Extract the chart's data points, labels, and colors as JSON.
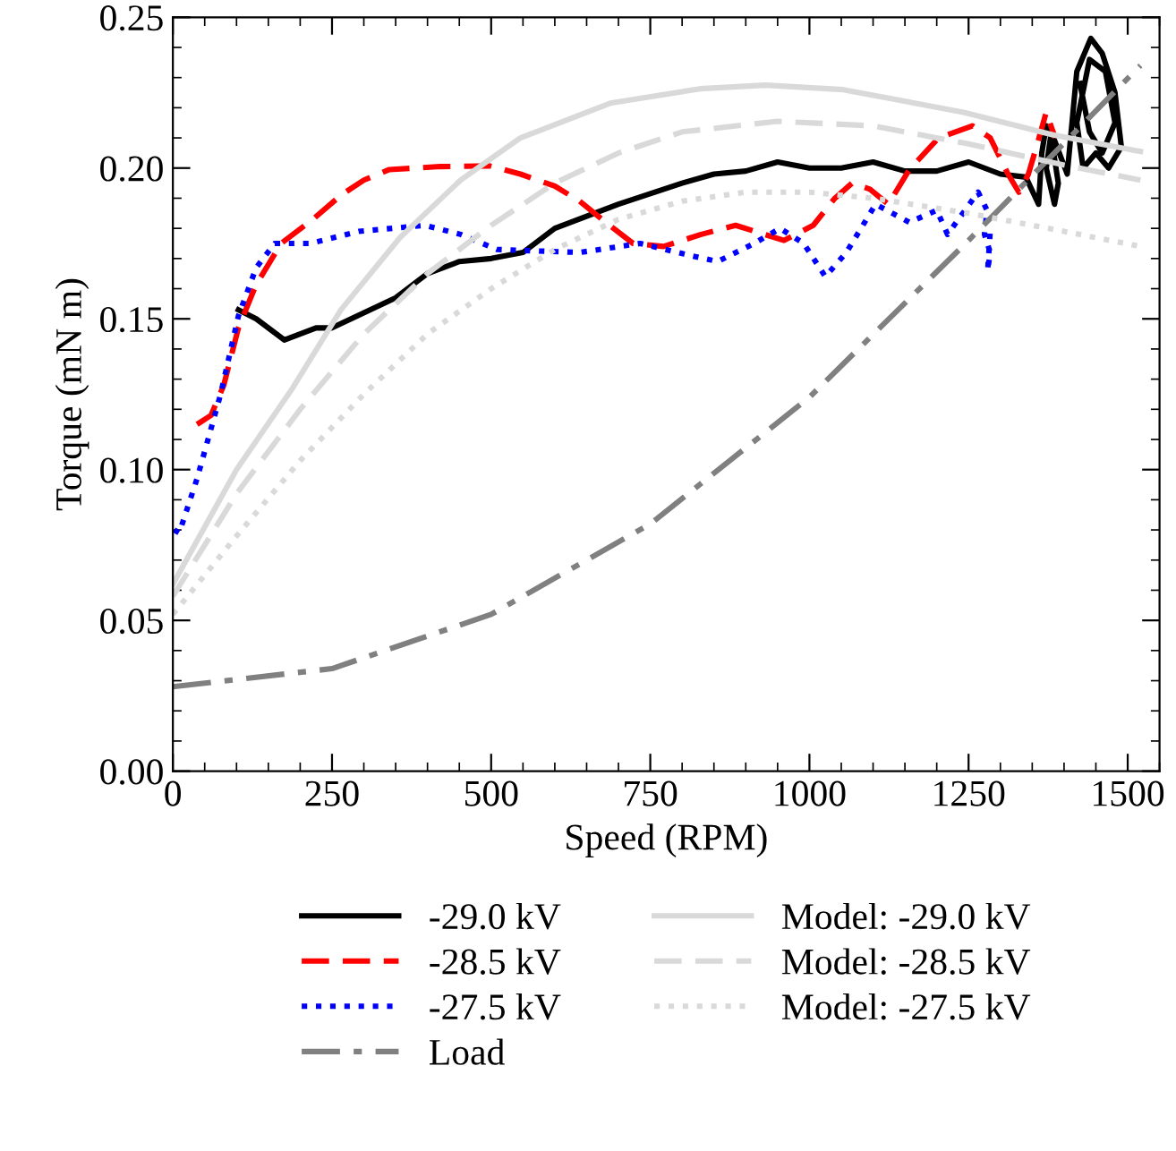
{
  "chart_data": {
    "type": "line",
    "xlabel": "Speed (RPM)",
    "ylabel": "Torque (mN m)",
    "xlim": [
      0,
      1550
    ],
    "xticks": [
      0,
      250,
      500,
      750,
      1000,
      1250,
      1500
    ],
    "ylim": [
      0,
      0.25
    ],
    "yticks": [
      {
        "value": 0,
        "label": "0.00"
      },
      0.05,
      {
        "value": 0.1,
        "label": "0.10"
      },
      0.15,
      {
        "value": 0.2,
        "label": "0.20"
      },
      0.25
    ],
    "grid": false,
    "legend": "bottom",
    "marker": "none",
    "series": [
      {
        "name": "-29.0 kV",
        "color": "#000000",
        "line_style": "solid",
        "x": [
          103,
          131,
          175,
          225,
          250,
          300,
          350,
          400,
          450,
          500,
          550,
          600,
          700,
          800,
          850,
          900,
          950,
          1000,
          1050,
          1100,
          1150,
          1200,
          1250,
          1300,
          1340,
          1360,
          1365,
          1372,
          1380,
          1391,
          1385,
          1372,
          1380,
          1405,
          1420,
          1442,
          1460,
          1480,
          1490,
          1470,
          1450,
          1430,
          1420,
          1440,
          1465,
          1480,
          1460,
          1440,
          1425
        ],
        "values": [
          0.153,
          0.15,
          0.143,
          0.147,
          0.147,
          0.152,
          0.157,
          0.165,
          0.169,
          0.17,
          0.172,
          0.18,
          0.188,
          0.195,
          0.198,
          0.199,
          0.202,
          0.2,
          0.2,
          0.202,
          0.199,
          0.199,
          0.202,
          0.198,
          0.197,
          0.188,
          0.205,
          0.214,
          0.21,
          0.195,
          0.188,
          0.2,
          0.212,
          0.198,
          0.232,
          0.243,
          0.238,
          0.225,
          0.207,
          0.2,
          0.205,
          0.2,
          0.215,
          0.236,
          0.232,
          0.215,
          0.205,
          0.212,
          0.228
        ]
      },
      {
        "name": "-28.5 kV",
        "color": "#ff0000",
        "line_style": "dashed",
        "x": [
          38,
          60,
          80,
          103,
          130,
          170,
          220,
          264,
          300,
          340,
          420,
          498,
          546,
          600,
          639,
          680,
          723,
          771,
          830,
          884,
          960,
          1006,
          1040,
          1067,
          1095,
          1124,
          1157,
          1203,
          1256,
          1284,
          1312,
          1329,
          1344,
          1358,
          1372,
          1386
        ],
        "values": [
          0.115,
          0.118,
          0.128,
          0.147,
          0.161,
          0.175,
          0.183,
          0.191,
          0.196,
          0.1995,
          0.2005,
          0.2007,
          0.198,
          0.194,
          0.189,
          0.182,
          0.175,
          0.174,
          0.178,
          0.181,
          0.176,
          0.181,
          0.19,
          0.195,
          0.193,
          0.188,
          0.1995,
          0.21,
          0.214,
          0.21,
          0.198,
          0.192,
          0.198,
          0.208,
          0.2185,
          0.21
        ]
      },
      {
        "name": "-27.5 kV",
        "color": "#0000ff",
        "line_style": "dotted",
        "x": [
          2,
          10,
          38,
          75,
          103,
          131,
          160,
          216,
          292,
          396,
          452,
          509,
          639,
          734,
          813,
          856,
          913,
          954,
          991,
          1025,
          1058,
          1104,
          1157,
          1200,
          1217,
          1265,
          1279,
          1275,
          1284,
          1280,
          1284
        ],
        "values": [
          0.08,
          0.079,
          0.097,
          0.125,
          0.151,
          0.167,
          0.175,
          0.175,
          0.179,
          0.181,
          0.178,
          0.173,
          0.172,
          0.175,
          0.171,
          0.169,
          0.175,
          0.18,
          0.175,
          0.164,
          0.172,
          0.188,
          0.182,
          0.186,
          0.178,
          0.192,
          0.186,
          0.178,
          0.172,
          0.166,
          0.179
        ]
      },
      {
        "name": "Load",
        "color": "#808080",
        "line_style": "dashdot",
        "x": [
          0,
          250,
          500,
          750,
          1000,
          1250,
          1520
        ],
        "values": [
          0.028,
          0.034,
          0.052,
          0.082,
          0.124,
          0.176,
          0.234
        ]
      },
      {
        "name": "Model: -29.0 kV",
        "color": "#d9d9d9",
        "line_style": "solid",
        "x": [
          0,
          100,
          188,
          264,
          357,
          452,
          546,
          687,
          828,
          931,
          1053,
          1242,
          1383,
          1520
        ],
        "values": [
          0.062,
          0.1,
          0.127,
          0.153,
          0.177,
          0.196,
          0.21,
          0.2215,
          0.2263,
          0.2275,
          0.226,
          0.2185,
          0.211,
          0.2055
        ]
      },
      {
        "name": "Model: -28.5 kV",
        "color": "#d9d9d9",
        "line_style": "dashed",
        "x": [
          0,
          100,
          200,
          300,
          400,
          500,
          600,
          700,
          800,
          950,
          1100,
          1250,
          1400,
          1520
        ],
        "values": [
          0.058,
          0.092,
          0.12,
          0.145,
          0.165,
          0.181,
          0.195,
          0.205,
          0.212,
          0.2155,
          0.214,
          0.208,
          0.201,
          0.196
        ]
      },
      {
        "name": "Model: -27.5 kV",
        "color": "#d9d9d9",
        "line_style": "dotted",
        "x": [
          0,
          100,
          200,
          300,
          400,
          500,
          600,
          700,
          800,
          900,
          1000,
          1100,
          1250,
          1400,
          1520
        ],
        "values": [
          0.052,
          0.078,
          0.103,
          0.125,
          0.145,
          0.16,
          0.173,
          0.183,
          0.189,
          0.192,
          0.192,
          0.19,
          0.185,
          0.179,
          0.174
        ]
      }
    ]
  }
}
